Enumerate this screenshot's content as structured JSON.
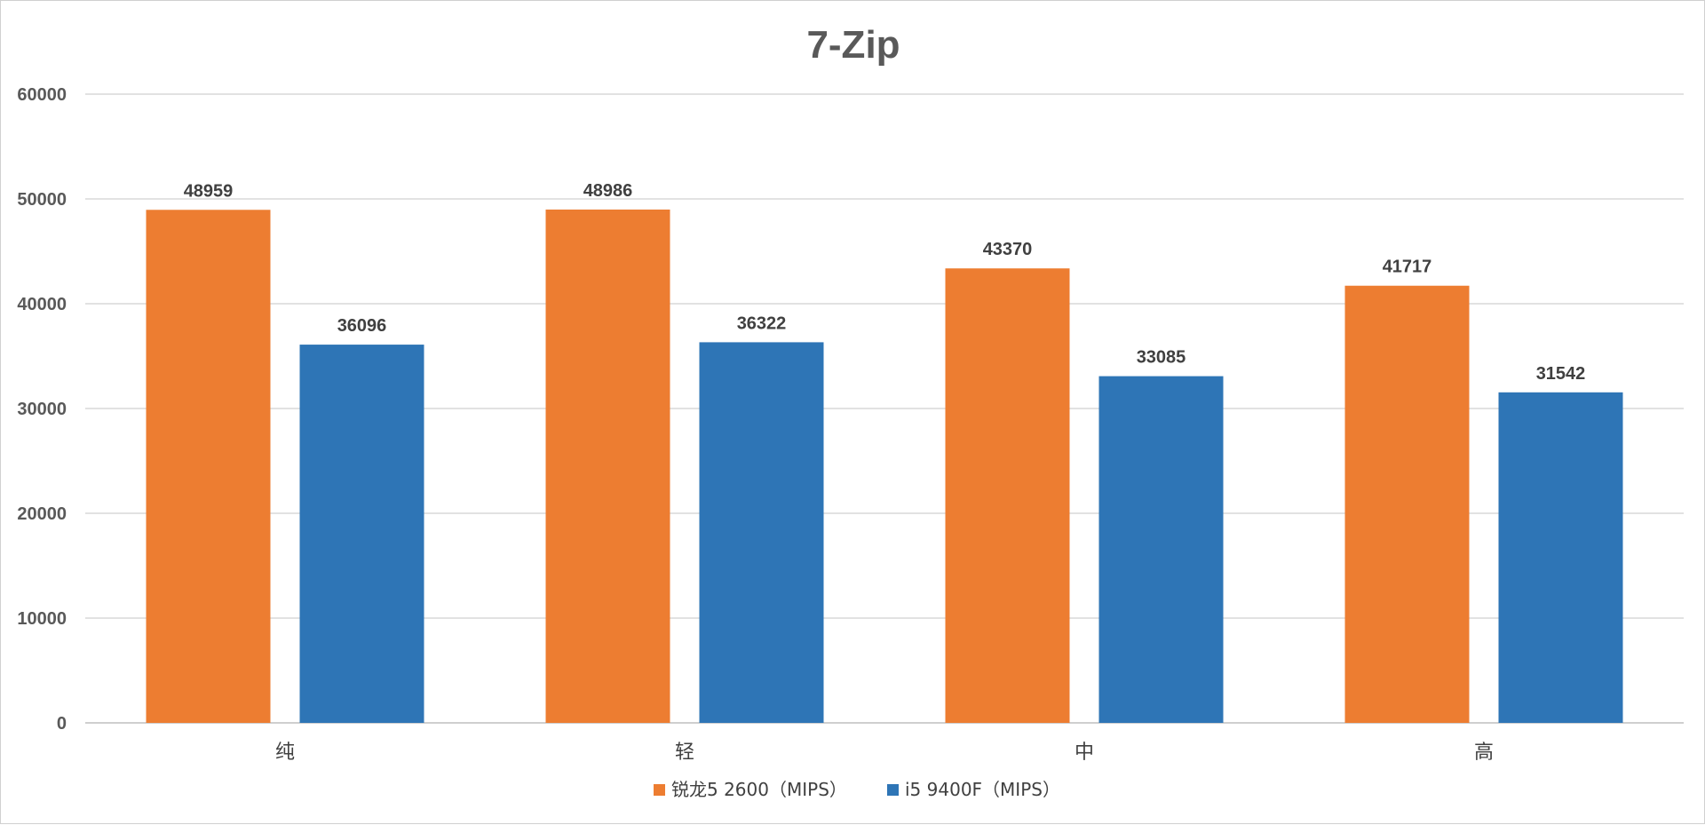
{
  "chart_data": {
    "type": "bar",
    "title": "7-Zip",
    "categories": [
      "纯",
      "轻",
      "中",
      "高"
    ],
    "series": [
      {
        "name": "锐龙5 2600（MIPS）",
        "color": "#ED7D31",
        "values": [
          48959,
          48986,
          43370,
          41717
        ]
      },
      {
        "name": "i5 9400F（MIPS）",
        "color": "#2E75B6",
        "values": [
          36096,
          36322,
          33085,
          31542
        ]
      }
    ],
    "ylim": [
      0,
      60000
    ],
    "yticks": [
      0,
      10000,
      20000,
      30000,
      40000,
      50000,
      60000
    ],
    "xlabel": "",
    "ylabel": "",
    "grid": true,
    "legend": "bottom-center"
  }
}
